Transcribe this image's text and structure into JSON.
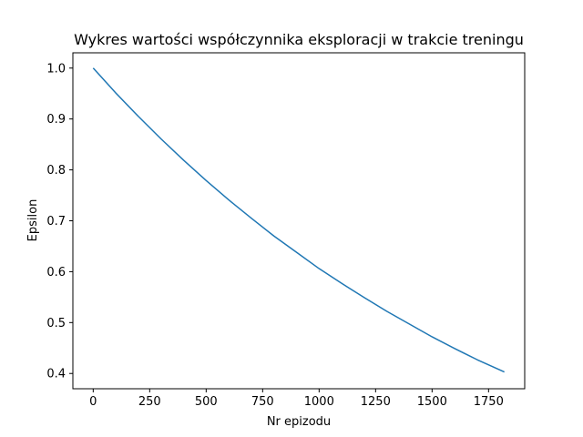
{
  "chart_data": {
    "type": "line",
    "title": "Wykres wartości współczynnika eksploracji w trakcie treningu",
    "xlabel": "Nr epizodu",
    "ylabel": "Epsilon",
    "xlim": [
      -90,
      1910
    ],
    "ylim": [
      0.37,
      1.03
    ],
    "xticks": [
      0,
      250,
      500,
      750,
      1000,
      1250,
      1500,
      1750
    ],
    "yticks": [
      0.4,
      0.5,
      0.6,
      0.7,
      0.8,
      0.9,
      1.0
    ],
    "ytick_labels": [
      "0.4",
      "0.5",
      "0.6",
      "0.7",
      "0.8",
      "0.9",
      "1.0"
    ],
    "grid": false,
    "line_color": "#1f77b4",
    "series": [
      {
        "x": [
          0,
          100,
          200,
          300,
          400,
          500,
          600,
          700,
          800,
          900,
          1000,
          1100,
          1200,
          1300,
          1400,
          1500,
          1600,
          1700,
          1800,
          1820
        ],
        "values": [
          1.0,
          0.951,
          0.905,
          0.861,
          0.819,
          0.779,
          0.741,
          0.705,
          0.67,
          0.638,
          0.606,
          0.577,
          0.549,
          0.522,
          0.497,
          0.472,
          0.449,
          0.427,
          0.407,
          0.403
        ]
      }
    ]
  }
}
